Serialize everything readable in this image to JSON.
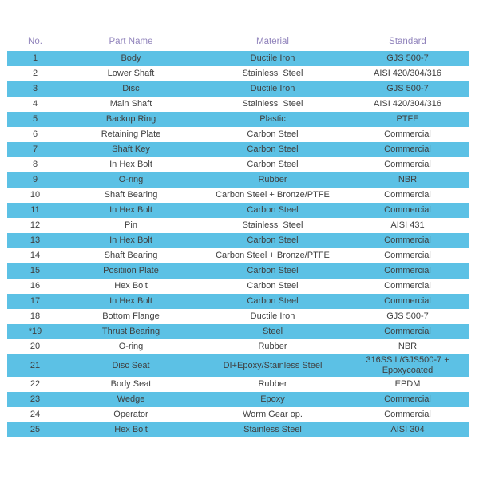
{
  "colors": {
    "row_highlight": "#5cc1e5",
    "header_text": "#9184bc",
    "body_text": "#404040",
    "page_background": "#ffffff"
  },
  "table": {
    "columns": [
      {
        "key": "no",
        "label": "No."
      },
      {
        "key": "part_name",
        "label": "Part Name"
      },
      {
        "key": "material",
        "label": "Material"
      },
      {
        "key": "standard",
        "label": "Standard"
      }
    ],
    "rows": [
      {
        "no": "1",
        "part_name": "Body",
        "material": "Ductile Iron",
        "standard": "GJS 500-7",
        "highlight": true
      },
      {
        "no": "2",
        "part_name": "Lower Shaft",
        "material": "Stainless  Steel",
        "standard": "AISI 420/304/316",
        "highlight": false
      },
      {
        "no": "3",
        "part_name": "Disc",
        "material": "Ductile Iron",
        "standard": "GJS 500-7",
        "highlight": true
      },
      {
        "no": "4",
        "part_name": "Main Shaft",
        "material": "Stainless  Steel",
        "standard": "AISI 420/304/316",
        "highlight": false
      },
      {
        "no": "5",
        "part_name": "Backup Ring",
        "material": "Plastic",
        "standard": "PTFE",
        "highlight": true
      },
      {
        "no": "6",
        "part_name": "Retaining Plate",
        "material": "Carbon Steel",
        "standard": "Commercial",
        "highlight": false
      },
      {
        "no": "7",
        "part_name": "Shaft Key",
        "material": "Carbon Steel",
        "standard": "Commercial",
        "highlight": true
      },
      {
        "no": "8",
        "part_name": "In Hex Bolt",
        "material": "Carbon Steel",
        "standard": "Commercial",
        "highlight": false
      },
      {
        "no": "9",
        "part_name": "O-ring",
        "material": "Rubber",
        "standard": "NBR",
        "highlight": true
      },
      {
        "no": "10",
        "part_name": "Shaft Bearing",
        "material": "Carbon Steel + Bronze/PTFE",
        "standard": "Commercial",
        "highlight": false
      },
      {
        "no": "11",
        "part_name": "In Hex Bolt",
        "material": "Carbon Steel",
        "standard": "Commercial",
        "highlight": true
      },
      {
        "no": "12",
        "part_name": "Pin",
        "material": "Stainless  Steel",
        "standard": "AISI 431",
        "highlight": false
      },
      {
        "no": "13",
        "part_name": "In Hex Bolt",
        "material": "Carbon Steel",
        "standard": "Commercial",
        "highlight": true
      },
      {
        "no": "14",
        "part_name": "Shaft Bearing",
        "material": "Carbon Steel + Bronze/PTFE",
        "standard": "Commercial",
        "highlight": false
      },
      {
        "no": "15",
        "part_name": "Positiion Plate",
        "material": "Carbon Steel",
        "standard": "Commercial",
        "highlight": true
      },
      {
        "no": "16",
        "part_name": "Hex Bolt",
        "material": "Carbon Steel",
        "standard": "Commercial",
        "highlight": false
      },
      {
        "no": "17",
        "part_name": "In Hex Bolt",
        "material": "Carbon Steel",
        "standard": "Commercial",
        "highlight": true
      },
      {
        "no": "18",
        "part_name": "Bottom Flange",
        "material": "Ductile Iron",
        "standard": "GJS 500-7",
        "highlight": false
      },
      {
        "no": "*19",
        "part_name": "Thrust Bearing",
        "material": "Steel",
        "standard": "Commercial",
        "highlight": true
      },
      {
        "no": "20",
        "part_name": "O-ring",
        "material": "Rubber",
        "standard": "NBR",
        "highlight": false
      },
      {
        "no": "21",
        "part_name": "Disc Seat",
        "material": "DI+Epoxy/Stainless Steel",
        "standard": "316SS L/GJS500-7 +\nEpoxycoated",
        "highlight": true
      },
      {
        "no": "22",
        "part_name": "Body Seat",
        "material": "Rubber",
        "standard": "EPDM",
        "highlight": false
      },
      {
        "no": "23",
        "part_name": "Wedge",
        "material": "Epoxy",
        "standard": "Commercial",
        "highlight": true
      },
      {
        "no": "24",
        "part_name": "Operator",
        "material": "Worm Gear op.",
        "standard": "Commercial",
        "highlight": false
      },
      {
        "no": "25",
        "part_name": "Hex Bolt",
        "material": "Stainless Steel",
        "standard": "AISI 304",
        "highlight": true
      }
    ]
  }
}
